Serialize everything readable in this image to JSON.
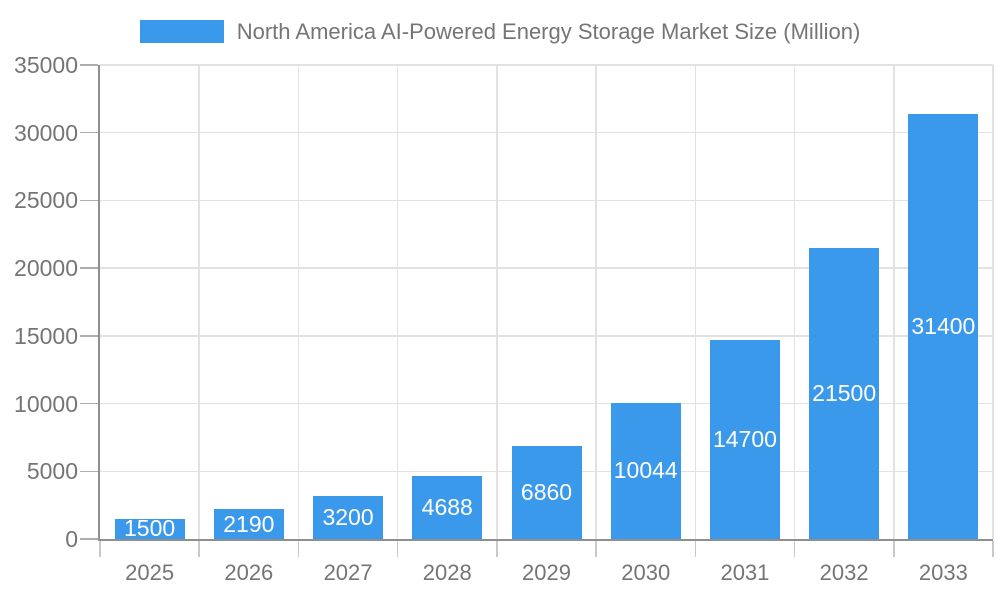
{
  "legend": {
    "items": [
      {
        "label": "North America AI-Powered Energy Storage Market Size (Million)",
        "color": "#3B99EC"
      }
    ]
  },
  "chart_data": {
    "type": "bar",
    "title": "North America AI-Powered Energy Storage Market Size (Million)",
    "legend": [
      "North America AI-Powered Energy Storage Market Size (Million)"
    ],
    "legend_position": "top",
    "categories": [
      "2025",
      "2026",
      "2027",
      "2028",
      "2029",
      "2030",
      "2031",
      "2032",
      "2033"
    ],
    "values": [
      1500,
      2190,
      3200,
      4688,
      6860,
      10044,
      14700,
      21500,
      31400
    ],
    "bar_labels": [
      "1500",
      "2190",
      "3200",
      "4688",
      "6860",
      "10044",
      "14700",
      "21500",
      "31400"
    ],
    "xlabel": "",
    "ylabel": "",
    "ylim": [
      0,
      35000
    ],
    "yticks": [
      0,
      5000,
      10000,
      15000,
      20000,
      25000,
      30000,
      35000
    ],
    "grid": true,
    "bar_labels_visible": true,
    "bar_label_position": "inside-center"
  },
  "colors": {
    "bar": "#3B99EC",
    "grid_line": "#E2E2E2",
    "axis_line": "#8F8F8F",
    "y_tick_mark": "#ADADAD",
    "x_tick_mark": "#C9C9C9",
    "tick_label_text": "#757575",
    "legend_text": "#757575",
    "bar_label_text": "#FFFFFF",
    "background": "#FFFFFF"
  }
}
